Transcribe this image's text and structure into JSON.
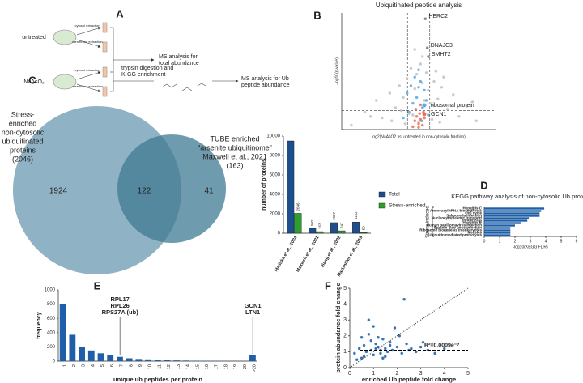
{
  "panel_a": {
    "label": "A",
    "conditions": [
      "untreated",
      "NaAsO₂"
    ],
    "fractions": [
      "cytosol extraction",
      "membrane extraction"
    ],
    "steps": [
      [
        "MS analysis for",
        "total abundance"
      ],
      [
        "trypsin digestion and",
        "K-GG enrichment"
      ],
      [
        "MS analysis for Ub",
        "peptide abundance"
      ]
    ]
  },
  "chart_data": [
    {
      "type": "scatter",
      "panel": "B",
      "title": "Ubiquitinated peptide analysis",
      "xlabel": "log2(NaAsO2 vs. untreated in non-cytosolic fraction)",
      "ylabel": "-log10(p-value)",
      "xlim": [
        -4,
        4
      ],
      "ylim": [
        0,
        8
      ],
      "thresholds": {
        "x": [
          -0.58,
          0.58
        ],
        "y": 1.3
      },
      "legend": "right",
      "series": [
        {
          "color": "#c4c4c4",
          "x": [
            -3.5,
            -2.8,
            -2.2,
            -1.9,
            -1.5,
            -1.2,
            -1.0,
            -0.8,
            -0.6,
            -0.4,
            -0.3,
            -0.2,
            -0.1,
            0.0,
            0.1,
            0.2,
            0.3,
            0.4,
            0.5,
            0.6,
            0.8,
            1.0,
            1.2,
            1.5,
            1.8,
            2.1,
            2.5,
            3.0,
            -0.7,
            -0.5,
            0.7,
            0.9,
            -1.4,
            1.3,
            -2.5,
            2.8,
            -0.9,
            1.1,
            0.2,
            -0.2
          ],
          "values": [
            0.3,
            1.2,
            2.0,
            0.8,
            2.5,
            1.5,
            3.0,
            2.2,
            3.5,
            4.2,
            1.0,
            2.8,
            3.8,
            0.5,
            4.5,
            3.2,
            2.0,
            3.9,
            2.7,
            1.8,
            3.3,
            2.1,
            2.9,
            1.4,
            2.4,
            0.9,
            1.6,
            0.6,
            0.4,
            1.1,
            0.7,
            4.0,
            0.6,
            3.6,
            0.9,
            1.9,
            1.3,
            0.5,
            5.0,
            5.5
          ]
        },
        {
          "name": "ribosomal protein",
          "color": "#5dade2",
          "x": [
            -0.6,
            -0.4,
            -0.3,
            -0.2,
            -0.1,
            0.0,
            0.1,
            0.2,
            0.3,
            0.4,
            -0.5,
            0.5,
            -0.8,
            0.7,
            0.0,
            0.15
          ],
          "values": [
            2.5,
            3.0,
            1.8,
            3.6,
            2.2,
            2.9,
            3.3,
            1.5,
            2.7,
            2.0,
            1.2,
            1.0,
            0.8,
            1.7,
            4.1,
            0.6
          ]
        },
        {
          "name": "GCN1",
          "color": "#e8735a",
          "x": [
            -0.3,
            -0.2,
            -0.1,
            0.0,
            0.05,
            0.1,
            0.2,
            0.3,
            -0.15,
            0.25,
            0.0,
            0.1
          ],
          "values": [
            0.2,
            0.6,
            0.9,
            0.4,
            1.1,
            0.7,
            0.3,
            0.8,
            1.4,
            1.2,
            0.15,
            1.7
          ]
        }
      ],
      "annotations": [
        {
          "text": "HERC2",
          "x": 0.35,
          "y": 7.6
        },
        {
          "text": "DNAJC3",
          "x": 0.45,
          "y": 5.6
        },
        {
          "text": "SMHT2",
          "x": 0.5,
          "y": 5.0
        }
      ]
    },
    {
      "type": "venn",
      "panel": "C",
      "sets": [
        {
          "label_lines": [
            "Stress-",
            "enriched",
            "non-cytosolic",
            "ubiquitinated",
            "proteins",
            "(2046)"
          ],
          "color": "#8fb3c4"
        },
        {
          "label_lines": [
            "TUBE enriched",
            "“arsenite ubiquitinome”",
            "Maxwell et al., 2021",
            "(163)"
          ],
          "color": "#3f7a93"
        }
      ],
      "regions": [
        1924,
        122,
        41
      ]
    },
    {
      "type": "bar",
      "ylabel": "number of proteins",
      "categories": [
        "Maduka et al., 2024",
        "Maxwell et al., 2021",
        "Jiang et al., 2022",
        "Markmiller et al., 2019"
      ],
      "ylim": [
        0,
        10000
      ],
      "yticks": [
        0,
        2000,
        4000,
        6000,
        8000,
        10000
      ],
      "series": [
        {
          "name": "Total",
          "color": "#1f4e8c",
          "values": [
            9500,
            502,
            1087,
            1152
          ],
          "value_labels": [
            null,
            "502",
            "1087",
            "1152"
          ]
        },
        {
          "name": "Stress-enriched",
          "color": "#2ca02c",
          "values": [
            2046,
            163,
            247,
            59
          ],
          "value_labels": [
            "2046",
            "163",
            "247",
            "59"
          ]
        }
      ]
    },
    {
      "type": "barh",
      "panel": "D",
      "title": "KEGG pathway analysis of non-cytosolic Ub proteins",
      "xlabel": "-log10(KEGG FDR)",
      "group_label": "Stress induced",
      "color": "#1f5fa8",
      "categories": [
        "Hepatitis C",
        "Aminoacyl-tRNA biosynthesis",
        "Cell cycle",
        "Salmonella infection",
        "Nucleocytoplasmic transport",
        "Influenza A",
        "Hepatitis B",
        "Human papillomavirus infection",
        "Epstein-Barr virus infection",
        "Ribosome biogenesis in eukaryotes",
        "Measles",
        "Ubiquitin mediated proteolysis"
      ],
      "values": [
        3.9,
        3.7,
        3.6,
        3.6,
        2.9,
        2.8,
        2.4,
        2.0,
        1.7,
        1.7,
        1.7,
        1.7
      ],
      "xlim": [
        0,
        6
      ],
      "xticks": [
        0,
        1,
        2,
        3,
        4,
        5,
        6
      ]
    },
    {
      "type": "bar",
      "panel": "E",
      "xlabel": "unique ub peptides per protein",
      "ylabel": "frequency",
      "color": "#1f5fa8",
      "categories": [
        "1",
        "2",
        "3",
        "4",
        "5",
        "6",
        "7",
        "8",
        "9",
        "10",
        "11",
        "12",
        "13",
        "14",
        "15",
        "16",
        "17",
        "18",
        "19",
        "20",
        ">20"
      ],
      "values": [
        800,
        370,
        200,
        150,
        110,
        90,
        60,
        40,
        30,
        25,
        15,
        12,
        10,
        8,
        6,
        5,
        4,
        3,
        2,
        2,
        80
      ],
      "ylim": [
        0,
        1000
      ],
      "yticks": [
        0,
        200,
        400,
        600,
        800,
        1000
      ],
      "annotations": [
        {
          "lines": [
            "RPL17",
            "RPL26",
            "RPS27A (ub)"
          ],
          "category": 6
        },
        {
          "lines": [
            "GCN1",
            "LTN1"
          ],
          "category": 20
        }
      ]
    },
    {
      "type": "scatter",
      "panel": "F",
      "xlabel": "enriched Ub peptide fold change",
      "ylabel": "protein abundance fold change",
      "xlim": [
        0,
        5
      ],
      "ylim": [
        0,
        5
      ],
      "xticks": [
        0,
        1,
        2,
        3,
        4,
        5
      ],
      "yticks": [
        0,
        1,
        2,
        3,
        4,
        5
      ],
      "identity_line": true,
      "fit_y": 1.1,
      "fit_label": "R²=0.0009e⁻⁷",
      "series": [
        {
          "color": "#2166ac",
          "x": [
            0.2,
            0.4,
            0.5,
            0.6,
            0.7,
            0.8,
            0.9,
            1.0,
            1.1,
            1.2,
            1.3,
            1.4,
            1.5,
            1.6,
            1.7,
            1.8,
            2.0,
            2.2,
            2.4,
            2.6,
            2.8,
            3.0,
            3.3,
            3.6,
            4.0,
            0.3,
            0.6,
            0.9,
            1.0,
            1.2,
            1.4,
            1.7,
            2.1,
            2.5,
            3.1,
            0.8,
            1.1,
            1.5,
            0.5,
            2.3,
            1.9,
            1.3
          ],
          "values": [
            0.9,
            1.2,
            0.6,
            1.4,
            1.0,
            2.1,
            1.1,
            0.8,
            1.5,
            1.3,
            0.9,
            1.8,
            1.2,
            1.0,
            1.6,
            1.1,
            1.3,
            0.9,
            1.5,
            1.2,
            1.0,
            1.3,
            1.1,
            0.9,
            1.2,
            0.5,
            0.7,
            1.7,
            2.6,
            1.9,
            0.6,
            1.4,
            2.0,
            1.1,
            1.6,
            3.0,
            1.2,
            0.7,
            1.9,
            4.3,
            2.5,
            1.1
          ]
        }
      ]
    }
  ]
}
